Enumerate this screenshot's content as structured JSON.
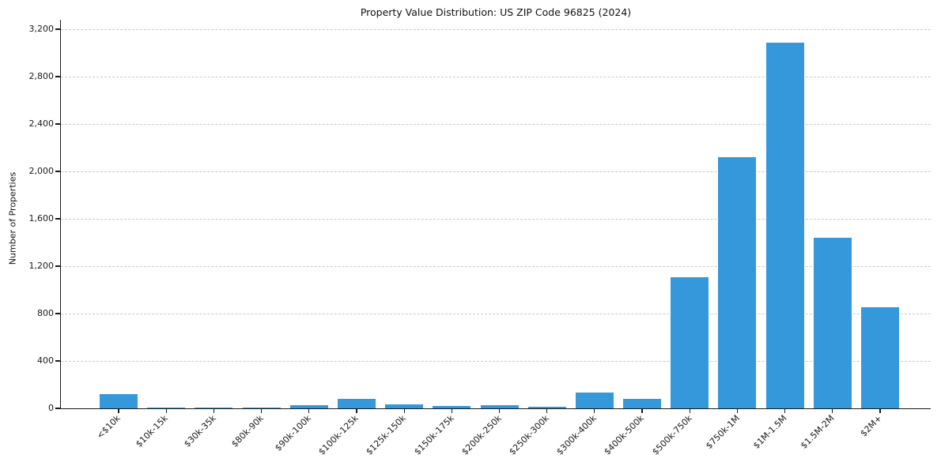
{
  "chart_data": {
    "type": "bar",
    "title": "Property Value Distribution: US ZIP Code 96825 (2024)",
    "xlabel": "",
    "ylabel": "Number of Properties",
    "categories": [
      "<$10k",
      "$10k-15k",
      "$30k-35k",
      "$80k-90k",
      "$90k-100k",
      "$100k-125k",
      "$125k-150k",
      "$150k-175k",
      "$200k-250k",
      "$250k-300k",
      "$300k-400k",
      "$400k-500k",
      "$500k-750k",
      "$750k-1M",
      "$1M-1.5M",
      "$1.5M-2M",
      "$2M+"
    ],
    "values": [
      120,
      10,
      8,
      8,
      25,
      80,
      35,
      20,
      28,
      15,
      135,
      78,
      1110,
      2120,
      3090,
      1440,
      855
    ],
    "ylim": [
      0,
      3200
    ],
    "ytick_interval": 400,
    "ytick_labels": [
      "0",
      "400",
      "800",
      "1,200",
      "1,600",
      "2,000",
      "2,400",
      "2,800",
      "3,200"
    ],
    "x_tick_rotation": 45,
    "grid": "horizontal-dashed",
    "legend": "none",
    "bar_color": "#3498db",
    "grid_color": "#c9c9c9",
    "axis_color": "#1a1a1a",
    "text_color": "#1a1a1a",
    "background_color": "#ffffff"
  }
}
